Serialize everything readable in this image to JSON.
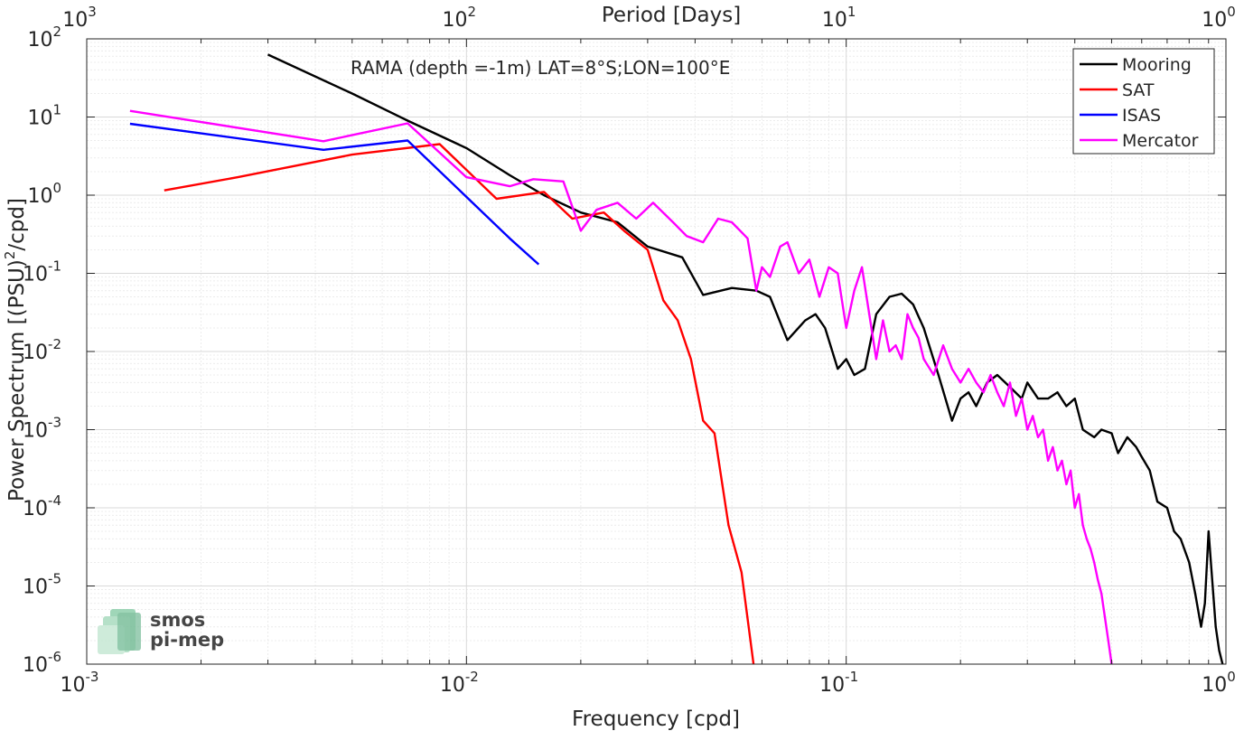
{
  "chart_data": {
    "type": "line",
    "title": "",
    "annotation": "RAMA (depth =-1m) LAT=8°S;LON=100°E",
    "xlabel": "Frequency [cpd]",
    "ylabel": "Power Spectrum [(PSU)",
    "ylabel_sup": "2",
    "ylabel_tail": "/cpd]",
    "top_xlabel": "Period [Days]",
    "x_scale": "log",
    "y_scale": "log",
    "xlim": [
      0.001,
      1
    ],
    "ylim": [
      1e-06,
      100
    ],
    "grid": true,
    "minor_grid": true,
    "legend_position": "top-right",
    "x_ticks": [
      {
        "value": 0.001,
        "base": "10",
        "exp": "-3"
      },
      {
        "value": 0.01,
        "base": "10",
        "exp": "-2"
      },
      {
        "value": 0.1,
        "base": "10",
        "exp": "-1"
      },
      {
        "value": 1,
        "base": "10",
        "exp": "0"
      }
    ],
    "top_ticks": [
      {
        "value": 0.001,
        "base": "10",
        "exp": "3"
      },
      {
        "value": 0.01,
        "base": "10",
        "exp": "2"
      },
      {
        "value": 0.1,
        "base": "10",
        "exp": "1"
      },
      {
        "value": 1,
        "base": "10",
        "exp": "0"
      }
    ],
    "y_ticks": [
      {
        "value": 100,
        "base": "10",
        "exp": "2"
      },
      {
        "value": 10,
        "base": "10",
        "exp": "1"
      },
      {
        "value": 1,
        "base": "10",
        "exp": "0"
      },
      {
        "value": 0.1,
        "base": "10",
        "exp": "-1"
      },
      {
        "value": 0.01,
        "base": "10",
        "exp": "-2"
      },
      {
        "value": 0.001,
        "base": "10",
        "exp": "-3"
      },
      {
        "value": 0.0001,
        "base": "10",
        "exp": "-4"
      },
      {
        "value": 1e-05,
        "base": "10",
        "exp": "-5"
      },
      {
        "value": 1e-06,
        "base": "10",
        "exp": "-6"
      }
    ],
    "series": [
      {
        "name": "Mooring",
        "color": "#000000",
        "x": [
          0.003,
          0.005,
          0.007,
          0.01,
          0.013,
          0.016,
          0.02,
          0.025,
          0.03,
          0.037,
          0.042,
          0.05,
          0.058,
          0.063,
          0.07,
          0.078,
          0.083,
          0.088,
          0.095,
          0.1,
          0.105,
          0.112,
          0.12,
          0.13,
          0.14,
          0.15,
          0.16,
          0.175,
          0.19,
          0.2,
          0.21,
          0.22,
          0.235,
          0.25,
          0.27,
          0.29,
          0.3,
          0.32,
          0.34,
          0.36,
          0.38,
          0.4,
          0.42,
          0.45,
          0.47,
          0.5,
          0.52,
          0.55,
          0.58,
          0.6,
          0.63,
          0.66,
          0.7,
          0.73,
          0.76,
          0.8,
          0.83,
          0.86,
          0.88,
          0.9,
          0.92,
          0.94,
          0.96,
          0.98
        ],
        "y": [
          63,
          20,
          9,
          4,
          1.8,
          1,
          0.6,
          0.45,
          0.22,
          0.16,
          0.053,
          0.065,
          0.06,
          0.05,
          0.014,
          0.025,
          0.03,
          0.02,
          0.006,
          0.008,
          0.005,
          0.006,
          0.03,
          0.05,
          0.055,
          0.04,
          0.02,
          0.005,
          0.0013,
          0.0025,
          0.003,
          0.002,
          0.004,
          0.005,
          0.0035,
          0.0025,
          0.004,
          0.0025,
          0.0025,
          0.003,
          0.002,
          0.0025,
          0.001,
          0.0008,
          0.001,
          0.0009,
          0.0005,
          0.0008,
          0.0006,
          0.00045,
          0.0003,
          0.00012,
          0.0001,
          5e-05,
          4e-05,
          2e-05,
          8e-06,
          3e-06,
          6e-06,
          5e-05,
          1.2e-05,
          3e-06,
          1.5e-06,
          1e-06
        ]
      },
      {
        "name": "SAT",
        "color": "#ff0000",
        "x": [
          0.0016,
          0.0025,
          0.005,
          0.0085,
          0.012,
          0.016,
          0.019,
          0.023,
          0.026,
          0.03,
          0.033,
          0.036,
          0.039,
          0.042,
          0.045,
          0.049,
          0.053,
          0.057
        ],
        "y": [
          1.15,
          1.7,
          3.3,
          4.5,
          0.9,
          1.1,
          0.5,
          0.6,
          0.35,
          0.2,
          0.045,
          0.025,
          0.008,
          0.0013,
          0.0009,
          6e-05,
          1.5e-05,
          1e-06
        ]
      },
      {
        "name": "ISAS",
        "color": "#0000ff",
        "x": [
          0.0013,
          0.0042,
          0.007,
          0.013,
          0.0155
        ],
        "y": [
          8.2,
          3.8,
          5.0,
          0.28,
          0.13
        ]
      },
      {
        "name": "Mercator",
        "color": "#ff00ff",
        "x": [
          0.0013,
          0.0042,
          0.007,
          0.01,
          0.013,
          0.015,
          0.018,
          0.02,
          0.022,
          0.025,
          0.028,
          0.031,
          0.035,
          0.038,
          0.042,
          0.046,
          0.05,
          0.055,
          0.058,
          0.06,
          0.063,
          0.067,
          0.07,
          0.075,
          0.08,
          0.085,
          0.09,
          0.095,
          0.1,
          0.105,
          0.11,
          0.115,
          0.12,
          0.125,
          0.13,
          0.135,
          0.14,
          0.145,
          0.15,
          0.155,
          0.16,
          0.17,
          0.18,
          0.19,
          0.2,
          0.21,
          0.22,
          0.23,
          0.24,
          0.25,
          0.26,
          0.27,
          0.28,
          0.29,
          0.3,
          0.31,
          0.32,
          0.33,
          0.34,
          0.35,
          0.36,
          0.37,
          0.38,
          0.39,
          0.4,
          0.41,
          0.42,
          0.43,
          0.44,
          0.45,
          0.46,
          0.47,
          0.48,
          0.49,
          0.5
        ],
        "y": [
          12,
          4.9,
          8.3,
          1.7,
          1.3,
          1.6,
          1.5,
          0.35,
          0.65,
          0.8,
          0.5,
          0.8,
          0.45,
          0.3,
          0.25,
          0.5,
          0.45,
          0.28,
          0.06,
          0.12,
          0.09,
          0.22,
          0.25,
          0.1,
          0.15,
          0.05,
          0.12,
          0.1,
          0.02,
          0.06,
          0.12,
          0.03,
          0.008,
          0.025,
          0.01,
          0.012,
          0.008,
          0.03,
          0.02,
          0.015,
          0.008,
          0.005,
          0.012,
          0.006,
          0.004,
          0.006,
          0.004,
          0.003,
          0.005,
          0.003,
          0.002,
          0.004,
          0.0015,
          0.0025,
          0.001,
          0.0015,
          0.0008,
          0.001,
          0.0004,
          0.0006,
          0.0003,
          0.0004,
          0.0002,
          0.0003,
          0.0001,
          0.00015,
          6e-05,
          4e-05,
          3e-05,
          2e-05,
          1.2e-05,
          8e-06,
          4e-06,
          2e-06,
          1e-06
        ]
      }
    ]
  },
  "logo": {
    "line1": "smos",
    "line2": "pi-mep"
  }
}
